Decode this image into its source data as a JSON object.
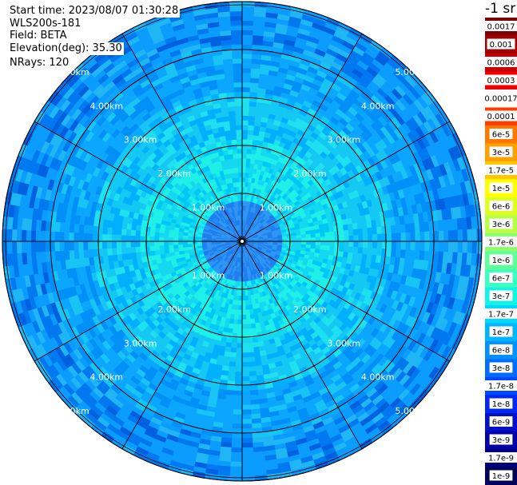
{
  "info": {
    "start_time": "Start time: 2023/08/07 01:30:28",
    "instrument": "WLS200s-181",
    "field": "Field: BETA",
    "elevation": "Elevation(deg): 35.30",
    "nrays": "NRays: 120"
  },
  "chart_data": {
    "type": "heatmap",
    "projection": "polar-ppi",
    "field": "BETA",
    "colorbar_units": "-1 sr",
    "range_rings_km": [
      1,
      2,
      3,
      4,
      5
    ],
    "range_labels": [
      "1.00km",
      "2.00km",
      "3.00km",
      "4.00km",
      "5.00km"
    ],
    "max_range_km": 5.0,
    "n_rays": 120,
    "spokes_deg": [
      0,
      30,
      60,
      90,
      120,
      150,
      180,
      210,
      240,
      270,
      300,
      330
    ],
    "colorbar_ticks": [
      "0.0017",
      "0.001",
      "0.0006",
      "0.0003",
      "0.00017",
      "0.0001",
      "6e-5",
      "3e-5",
      "1.7e-5",
      "1e-5",
      "6e-6",
      "3e-6",
      "1.7e-6",
      "1e-6",
      "6e-7",
      "3e-7",
      "1.7e-7",
      "1e-7",
      "6e-8",
      "3e-8",
      "1.7e-8",
      "1e-8",
      "6e-9",
      "3e-9",
      "1.7e-9",
      "1e-9"
    ],
    "colorbar_colors": [
      "#7f0000",
      "#a00000",
      "#c80000",
      "#f00000",
      "#ffffff",
      "#ff3c00",
      "#ff7800",
      "#ffa000",
      "#ffc800",
      "#ffff00",
      "#ddff22",
      "#b8ff48",
      "#8cff6e",
      "#60ff98",
      "#3cffc0",
      "#14f4e6",
      "#00d8ff",
      "#00b4ff",
      "#0090ff",
      "#006cff",
      "#0048ff",
      "#0028f0",
      "#0010c8",
      "#0000a8",
      "#00007f",
      "#00005a"
    ]
  }
}
